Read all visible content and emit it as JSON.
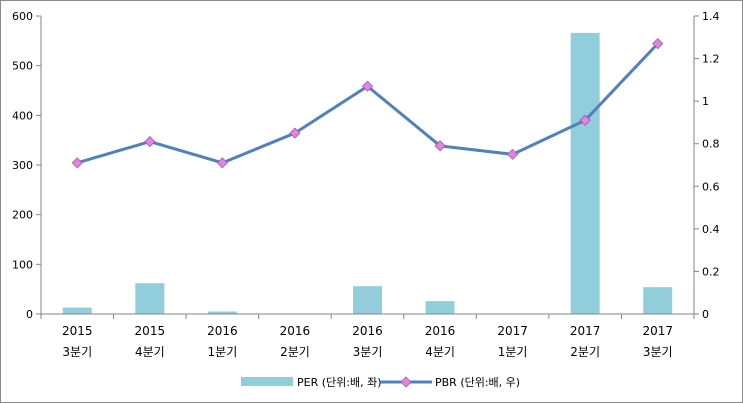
{
  "chart_data": {
    "type": "bar+line",
    "categories": [
      [
        "2015",
        "3분기"
      ],
      [
        "2015",
        "4분기"
      ],
      [
        "2016",
        "1분기"
      ],
      [
        "2016",
        "2분기"
      ],
      [
        "2016",
        "3분기"
      ],
      [
        "2016",
        "4분기"
      ],
      [
        "2017",
        "1분기"
      ],
      [
        "2017",
        "2분기"
      ],
      [
        "2017",
        "3분기"
      ]
    ],
    "series": [
      {
        "name": "PER (단위:배, 좌)",
        "type": "bar",
        "axis": "left",
        "color": "#92cddc",
        "values": [
          13,
          62,
          5,
          0,
          56,
          26,
          0,
          566,
          54
        ]
      },
      {
        "name": "PBR (단위:배, 우)",
        "type": "line",
        "axis": "right",
        "color": "#4f81bd",
        "marker_color": "#e086e0",
        "values": [
          0.71,
          0.81,
          0.71,
          0.85,
          1.07,
          0.79,
          0.75,
          0.91,
          1.27
        ]
      }
    ],
    "y_left": {
      "min": 0,
      "max": 600,
      "step": 100
    },
    "y_right": {
      "min": 0,
      "max": 1.4,
      "step": 0.2
    },
    "legend": "bottom",
    "grid": false
  }
}
